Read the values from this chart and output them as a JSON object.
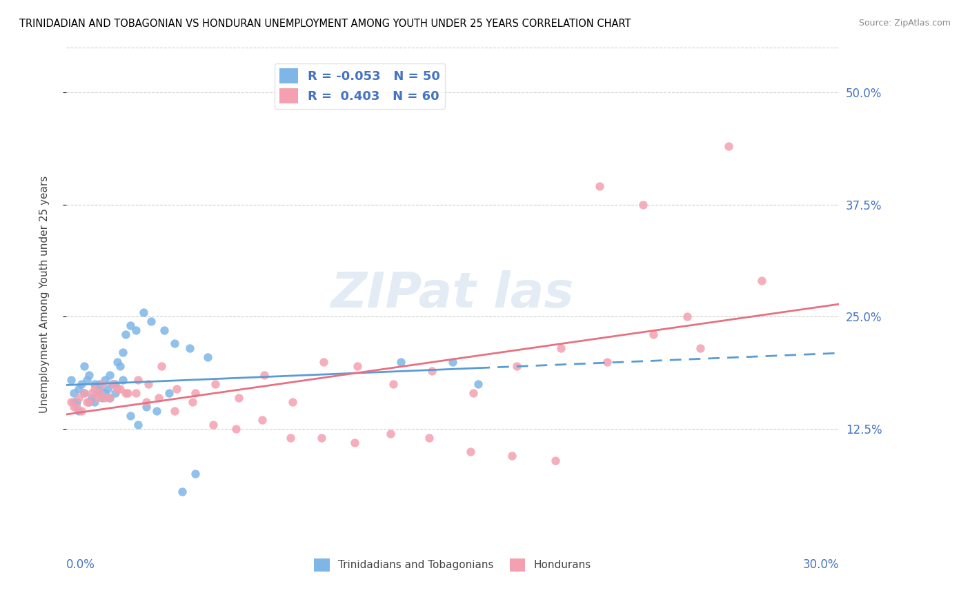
{
  "title": "TRINIDADIAN AND TOBAGONIAN VS HONDURAN UNEMPLOYMENT AMONG YOUTH UNDER 25 YEARS CORRELATION CHART",
  "source": "Source: ZipAtlas.com",
  "ylabel": "Unemployment Among Youth under 25 years",
  "ytick_values": [
    0.125,
    0.25,
    0.375,
    0.5
  ],
  "xmin": 0.0,
  "xmax": 0.3,
  "ymin": 0.0,
  "ymax": 0.55,
  "legend_label1": "Trinidadians and Tobagonians",
  "legend_label2": "Hondurans",
  "R1": -0.053,
  "N1": 50,
  "R2": 0.403,
  "N2": 60,
  "color_blue": "#7EB6E8",
  "color_pink": "#F4A0B0",
  "color_line_blue": "#5B9BD5",
  "color_line_pink": "#E87080",
  "color_text": "#4472C4",
  "blue_points_x": [
    0.002,
    0.003,
    0.004,
    0.005,
    0.006,
    0.007,
    0.008,
    0.009,
    0.01,
    0.011,
    0.012,
    0.013,
    0.014,
    0.015,
    0.016,
    0.017,
    0.018,
    0.019,
    0.02,
    0.021,
    0.022,
    0.023,
    0.025,
    0.027,
    0.03,
    0.033,
    0.038,
    0.042,
    0.048,
    0.055,
    0.003,
    0.005,
    0.007,
    0.009,
    0.011,
    0.013,
    0.015,
    0.017,
    0.019,
    0.022,
    0.025,
    0.028,
    0.031,
    0.035,
    0.04,
    0.045,
    0.05,
    0.13,
    0.15,
    0.16
  ],
  "blue_points_y": [
    0.18,
    0.165,
    0.155,
    0.17,
    0.175,
    0.195,
    0.18,
    0.155,
    0.16,
    0.175,
    0.165,
    0.175,
    0.16,
    0.18,
    0.17,
    0.185,
    0.175,
    0.165,
    0.2,
    0.195,
    0.21,
    0.23,
    0.24,
    0.235,
    0.255,
    0.245,
    0.235,
    0.22,
    0.215,
    0.205,
    0.155,
    0.145,
    0.165,
    0.185,
    0.155,
    0.17,
    0.165,
    0.16,
    0.175,
    0.18,
    0.14,
    0.13,
    0.15,
    0.145,
    0.165,
    0.055,
    0.075,
    0.2,
    0.2,
    0.175
  ],
  "pink_points_x": [
    0.002,
    0.003,
    0.005,
    0.007,
    0.009,
    0.011,
    0.013,
    0.015,
    0.018,
    0.021,
    0.024,
    0.028,
    0.032,
    0.037,
    0.043,
    0.05,
    0.058,
    0.067,
    0.077,
    0.088,
    0.1,
    0.113,
    0.127,
    0.142,
    0.158,
    0.175,
    0.192,
    0.21,
    0.228,
    0.246,
    0.004,
    0.006,
    0.008,
    0.01,
    0.012,
    0.014,
    0.017,
    0.02,
    0.023,
    0.027,
    0.031,
    0.036,
    0.042,
    0.049,
    0.057,
    0.066,
    0.076,
    0.087,
    0.099,
    0.112,
    0.126,
    0.141,
    0.157,
    0.173,
    0.19,
    0.207,
    0.224,
    0.241,
    0.257,
    0.27
  ],
  "pink_points_y": [
    0.155,
    0.15,
    0.16,
    0.165,
    0.155,
    0.17,
    0.165,
    0.16,
    0.175,
    0.17,
    0.165,
    0.18,
    0.175,
    0.195,
    0.17,
    0.165,
    0.175,
    0.16,
    0.185,
    0.155,
    0.2,
    0.195,
    0.175,
    0.19,
    0.165,
    0.195,
    0.215,
    0.2,
    0.23,
    0.215,
    0.15,
    0.145,
    0.155,
    0.165,
    0.16,
    0.175,
    0.16,
    0.17,
    0.165,
    0.165,
    0.155,
    0.16,
    0.145,
    0.155,
    0.13,
    0.125,
    0.135,
    0.115,
    0.115,
    0.11,
    0.12,
    0.115,
    0.1,
    0.095,
    0.09,
    0.395,
    0.375,
    0.25,
    0.44,
    0.29
  ]
}
